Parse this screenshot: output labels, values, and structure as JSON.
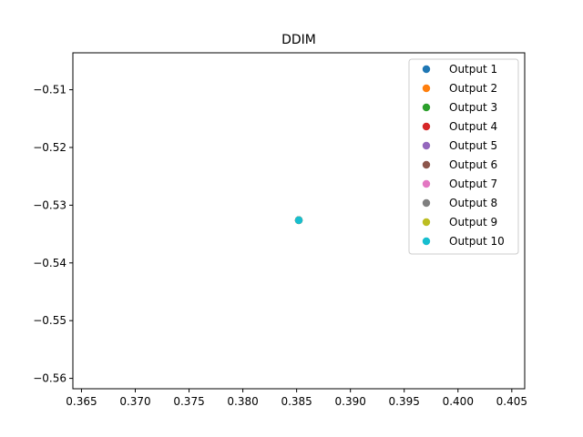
{
  "chart_data": {
    "type": "scatter",
    "title": "DDIM",
    "xlabel": "",
    "ylabel": "",
    "xlim": [
      0.3642,
      0.4062
    ],
    "ylim": [
      -0.5618,
      -0.5036
    ],
    "xticks": [
      {
        "value": 0.365,
        "label": "0.365"
      },
      {
        "value": 0.37,
        "label": "0.370"
      },
      {
        "value": 0.375,
        "label": "0.375"
      },
      {
        "value": 0.38,
        "label": "0.380"
      },
      {
        "value": 0.385,
        "label": "0.385"
      },
      {
        "value": 0.39,
        "label": "0.390"
      },
      {
        "value": 0.395,
        "label": "0.395"
      },
      {
        "value": 0.4,
        "label": "0.400"
      },
      {
        "value": 0.405,
        "label": "0.405"
      }
    ],
    "yticks": [
      {
        "value": -0.51,
        "label": "−0.51"
      },
      {
        "value": -0.52,
        "label": "−0.52"
      },
      {
        "value": -0.53,
        "label": "−0.53"
      },
      {
        "value": -0.54,
        "label": "−0.54"
      },
      {
        "value": -0.55,
        "label": "−0.55"
      },
      {
        "value": -0.56,
        "label": "−0.56"
      }
    ],
    "grid": false,
    "legend_position": "top-right",
    "series": [
      {
        "name": "Output 1",
        "color": "#1f77b4",
        "points": [
          {
            "x": 0.3852,
            "y": -0.5326
          }
        ]
      },
      {
        "name": "Output 2",
        "color": "#ff7f0e",
        "points": [
          {
            "x": 0.3852,
            "y": -0.5326
          }
        ]
      },
      {
        "name": "Output 3",
        "color": "#2ca02c",
        "points": [
          {
            "x": 0.3852,
            "y": -0.5326
          }
        ]
      },
      {
        "name": "Output 4",
        "color": "#d62728",
        "points": [
          {
            "x": 0.3852,
            "y": -0.5326
          }
        ]
      },
      {
        "name": "Output 5",
        "color": "#9467bd",
        "points": [
          {
            "x": 0.3852,
            "y": -0.5326
          }
        ]
      },
      {
        "name": "Output 6",
        "color": "#8c564b",
        "points": [
          {
            "x": 0.3852,
            "y": -0.5326
          }
        ]
      },
      {
        "name": "Output 7",
        "color": "#e377c2",
        "points": [
          {
            "x": 0.3852,
            "y": -0.5326
          }
        ]
      },
      {
        "name": "Output 8",
        "color": "#7f7f7f",
        "points": [
          {
            "x": 0.3852,
            "y": -0.5326
          }
        ]
      },
      {
        "name": "Output 9",
        "color": "#bcbd22",
        "points": [
          {
            "x": 0.3852,
            "y": -0.5326
          }
        ]
      },
      {
        "name": "Output 10",
        "color": "#17becf",
        "points": [
          {
            "x": 0.3852,
            "y": -0.5326
          }
        ]
      }
    ]
  }
}
